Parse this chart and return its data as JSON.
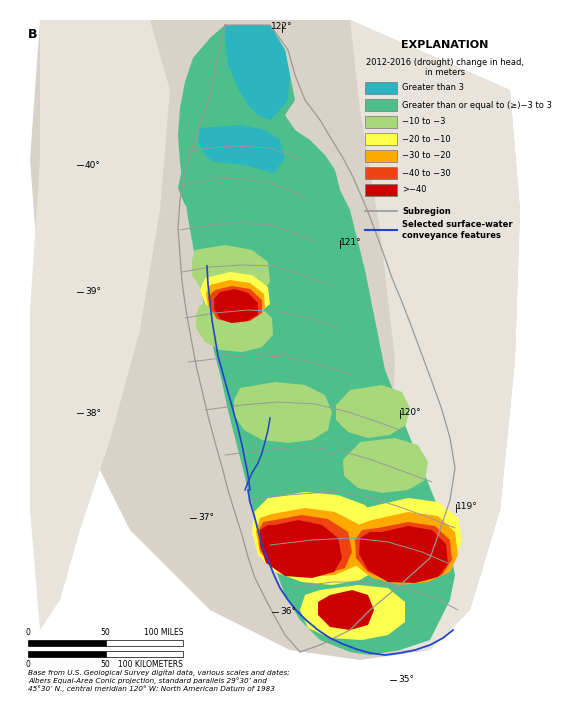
{
  "explanation_title": "EXPLANATION",
  "explanation_subtitle": "2012-2016 (drought) change in head,\nin meters",
  "legend_items": [
    {
      "label": "Greater than 3",
      "color": "#2ab5c0"
    },
    {
      "label": "Greater than or equal to (≥)−3 to 3",
      "color": "#4dbf8a"
    },
    {
      "label": "−10 to −3",
      "color": "#a8d87a"
    },
    {
      "label": "−20 to −10",
      "color": "#ffff50"
    },
    {
      "label": "−30 to −20",
      "color": "#ffaa00"
    },
    {
      "label": "−40 to −30",
      "color": "#ee4411"
    },
    {
      "label": ">−40",
      "color": "#cc0000"
    }
  ],
  "subregion_label": "Subregion",
  "subregion_color": "#999999",
  "sw_label": "Selected surface-water\nconveyance features",
  "sw_color": "#2244cc",
  "terrain_color": "#d8d2c8",
  "terrain_light": "#e8e4dc",
  "white_bg": "#ffffff",
  "panel_label": "B",
  "footnote": "Base from U.S. Geological Survey digital data, various scales and dates;\nAlbers Equal-Area Conic projection, standard parallels 29°30’ and\n45°30’ N., central meridian 120° W; North American Datum of 1983"
}
